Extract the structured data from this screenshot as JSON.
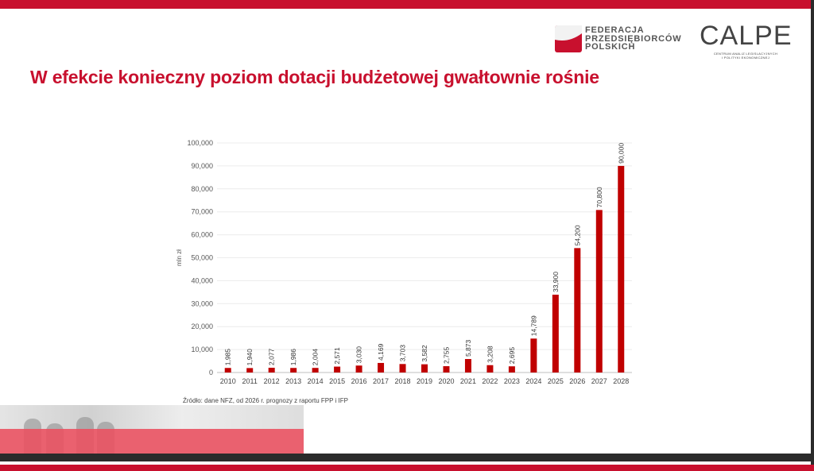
{
  "header": {
    "title": "W efekcie konieczny poziom dotacji budżetowej gwałtownie rośnie"
  },
  "logos": {
    "fpp": [
      "FEDERACJA",
      "PRZEDSIĘBIORCÓW",
      "POLSKICH"
    ],
    "calpe": "CALPE",
    "calpe_sub": [
      "CENTRUM ANALIZ LEGISLACYJNYCH",
      "I POLITYKI EKONOMICZNEJ"
    ]
  },
  "colors": {
    "accent": "#c8102e",
    "bar": "#c00000"
  },
  "source_note": "Źródło: dane NFZ, od 2026 r. prognozy z raportu FPP i IFP",
  "chart_data": {
    "type": "bar",
    "categories": [
      "2010",
      "2011",
      "2012",
      "2013",
      "2014",
      "2015",
      "2016",
      "2017",
      "2018",
      "2019",
      "2020",
      "2021",
      "2022",
      "2023",
      "2024",
      "2025",
      "2026",
      "2027",
      "2028"
    ],
    "values": [
      1985,
      1940,
      2077,
      1986,
      2004,
      2571,
      3030,
      4169,
      3703,
      3582,
      2755,
      5873,
      3208,
      2695,
      14789,
      33900,
      54200,
      70800,
      90000
    ],
    "value_labels": [
      "1,985",
      "1,940",
      "2,077",
      "1,986",
      "2,004",
      "2,571",
      "3,030",
      "4,169",
      "3,703",
      "3,582",
      "2,755",
      "5,873",
      "3,208",
      "2,695",
      "14,789",
      "33,900",
      "54,200",
      "70,800",
      "90,000"
    ],
    "ylabel": "mln zł",
    "xlabel": "",
    "ylim": [
      0,
      100000
    ],
    "yticks": [
      0,
      10000,
      20000,
      30000,
      40000,
      50000,
      60000,
      70000,
      80000,
      90000,
      100000
    ],
    "ytick_labels": [
      "0",
      "10,000",
      "20,000",
      "30,000",
      "40,000",
      "50,000",
      "60,000",
      "70,000",
      "80,000",
      "90,000",
      "100,000"
    ],
    "grid": true,
    "legend": "none"
  }
}
